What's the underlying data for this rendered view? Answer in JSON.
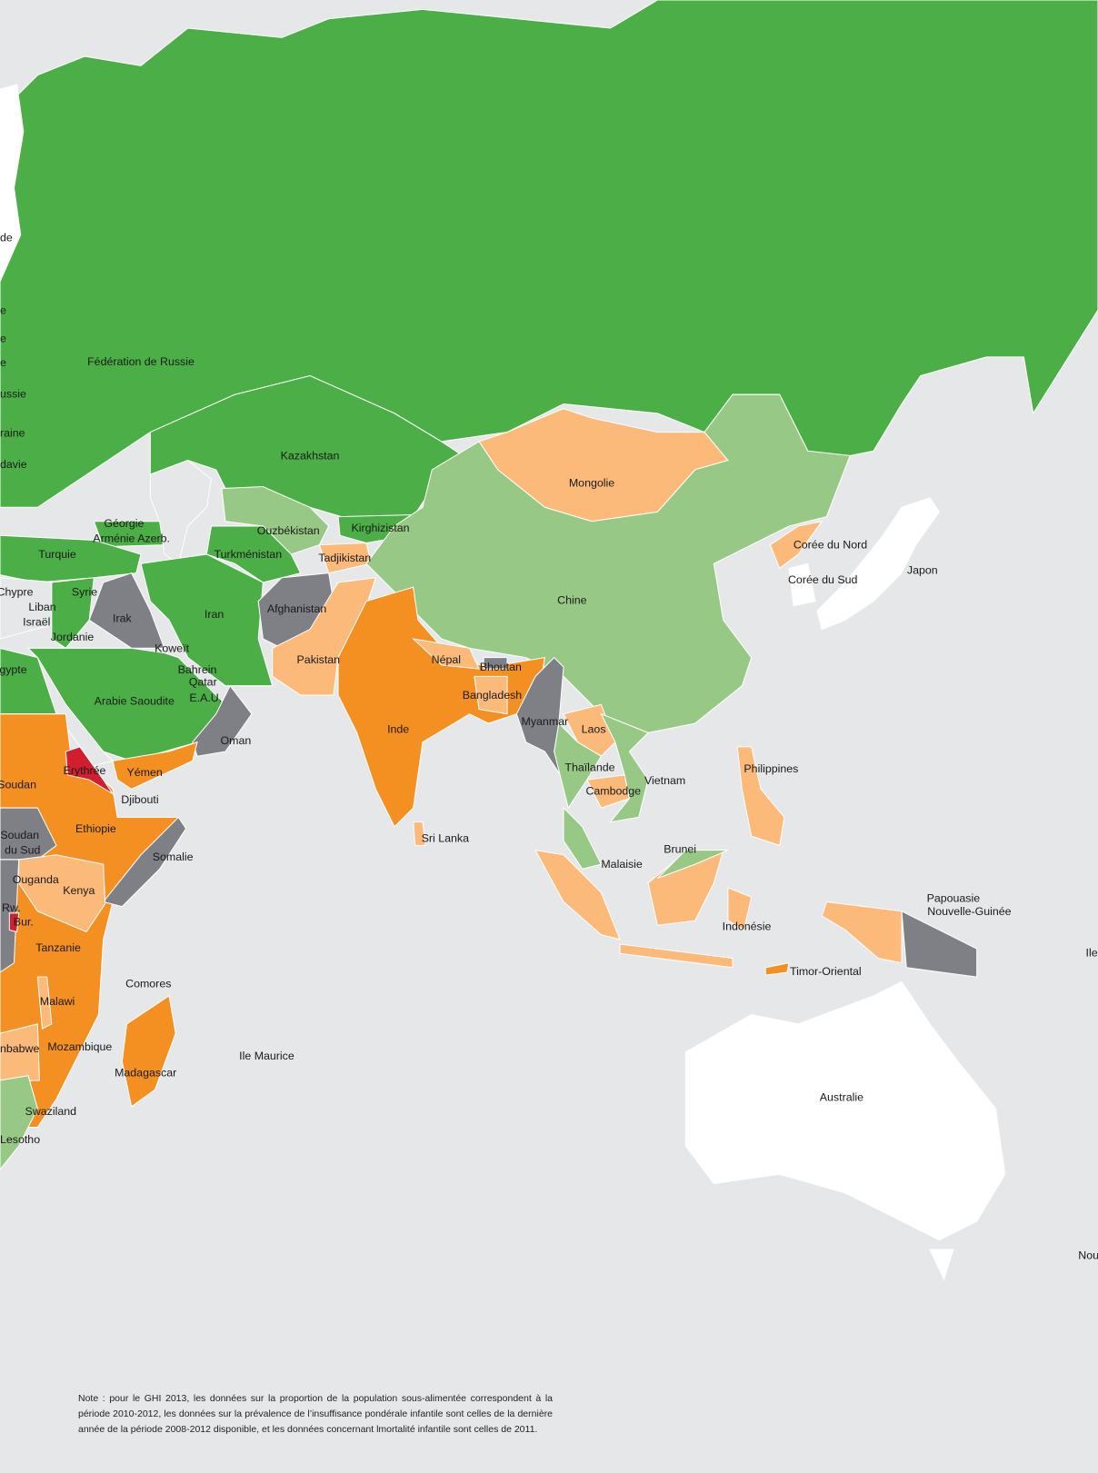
{
  "colors": {
    "ocean": "#e6e7e8",
    "no_data_white": "#ffffff",
    "green": "#4cae47",
    "light_green": "#97c886",
    "light_orange": "#fbb97a",
    "orange": "#f39021",
    "red": "#d0202f",
    "gray": "#7f7f86",
    "border": "#ffffff"
  },
  "labels": [
    "de",
    "e",
    "e",
    "e",
    "ussie",
    "raine",
    "davie",
    "Fédération de Russie",
    "Kazakhstan",
    "Géorgie",
    "Arménie Azerb.",
    "Ouzbékistan",
    "Kirghizistan",
    "Turquie",
    "Turkménistan",
    "Tadjikistan",
    "Syrie",
    "Chypre",
    "Liban",
    "Israël",
    "Irak",
    "Iran",
    "Afghanistan",
    "Jordanie",
    "Koweït",
    "Bahrein",
    "Qatar",
    "E.A.U.",
    "gypte",
    "Arabie Saoudite",
    "Pakistan",
    "Népal",
    "Bhoutan",
    "Bangladesh",
    "Mongolie",
    "Chine",
    "Corée du Nord",
    "Corée du Sud",
    "Japon",
    "Inde",
    "Myanmar",
    "Laos",
    "Oman",
    "Yémen",
    "Erythrée",
    "Soudan",
    "Djibouti",
    "Thaïlande",
    "Vietnam",
    "Cambodge",
    "Philippines",
    "Ethiopie",
    "Sri Lanka",
    "Soudan",
    "du Sud",
    "Somalie",
    "Brunei",
    "Malaisie",
    "Ouganda",
    "Kenya",
    "Papouasie",
    "Nouvelle-Guinée",
    "Rw.",
    "Bur.",
    "Indonésie",
    "Tanzanie",
    "Ile",
    "Timor-Oriental",
    "Comores",
    "Malawi",
    "nbabwe",
    "Mozambique",
    "Ile Maurice",
    "Madagascar",
    "Australie",
    "Swaziland",
    "Lesotho",
    "Nou"
  ],
  "note": "Note : pour le GHI 2013, les données sur la proportion de la population sous-alimentée correspondent à la période 2010-2012, les données sur la prévalence de l’insuffisance pondérale infantile sont celles de la dernière année de la période 2008-2012 disponible, et les données concernant lmortalité infantile sont celles de 2011."
}
